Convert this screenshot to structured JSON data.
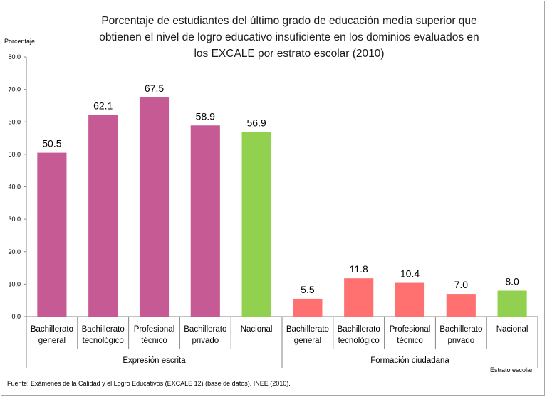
{
  "chart_data": {
    "type": "bar",
    "title_lines": [
      "Porcentaje de estudiantes del último grado de educación media superior que",
      "obtienen el nivel de logro educativo insuficiente en los dominios evaluados en",
      "los EXCALE por estrato escolar (2010)"
    ],
    "ylabel": "Porcentaje",
    "xlabel": "Estrato escolar",
    "ylim": [
      0,
      80
    ],
    "yticks": [
      "0.0",
      "10.0",
      "20.0",
      "30.0",
      "40.0",
      "50.0",
      "60.0",
      "70.0",
      "80.0"
    ],
    "grid": false,
    "groups": [
      {
        "name": "Expresión escrita",
        "categories": [
          [
            "Bachillerato",
            "general"
          ],
          [
            "Bachillerato",
            "tecnológico"
          ],
          [
            "Profesional",
            "técnico"
          ],
          [
            "Bachillerato",
            "privado"
          ],
          [
            "Nacional"
          ]
        ],
        "values": [
          50.5,
          62.1,
          67.5,
          58.9,
          56.9
        ],
        "labels": [
          "50.5",
          "62.1",
          "67.5",
          "58.9",
          "56.9"
        ],
        "colors": [
          "#c55a95",
          "#c55a95",
          "#c55a95",
          "#c55a95",
          "#92d050"
        ]
      },
      {
        "name": "Formación ciudadana",
        "categories": [
          [
            "Bachillerato",
            "general"
          ],
          [
            "Bachillerato",
            "tecnológico"
          ],
          [
            "Profesional",
            "técnico"
          ],
          [
            "Bachillerato",
            "privado"
          ],
          [
            "Nacional"
          ]
        ],
        "values": [
          5.5,
          11.8,
          10.4,
          7.0,
          8.0
        ],
        "labels": [
          "5.5",
          "11.8",
          "10.4",
          "7.0",
          "8.0"
        ],
        "colors": [
          "#ff7171",
          "#ff7171",
          "#ff7171",
          "#ff7171",
          "#92d050"
        ]
      }
    ],
    "source": "Fuente: Exámenes de la Calidad y el Logro Educativos (EXCALE 12) (base de datos), INEE (2010)."
  }
}
